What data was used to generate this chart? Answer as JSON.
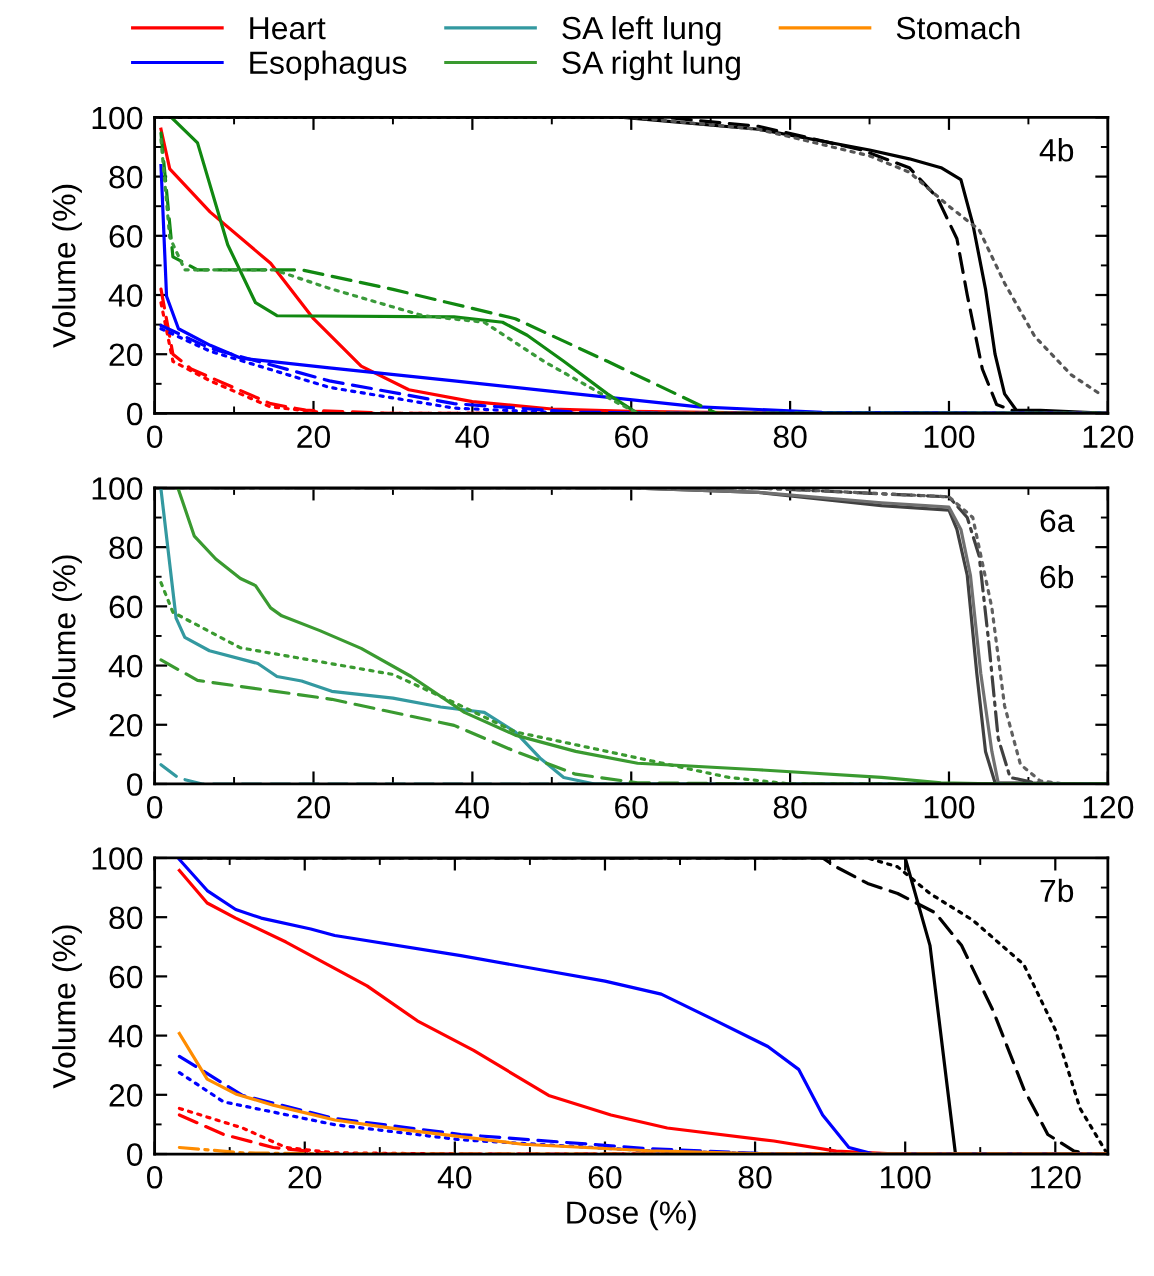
{
  "chart_data": [
    {
      "type": "line",
      "ylabel": "Volume (%)",
      "annotations": [
        "4b"
      ],
      "legend": "top",
      "xlim": [
        0,
        120
      ],
      "xticks": [
        0,
        20,
        40,
        60,
        80,
        100,
        120
      ],
      "ylim": [
        0,
        100
      ],
      "yticks": [
        0,
        20,
        40,
        60,
        80,
        100
      ],
      "series": [
        {
          "color": "#000000",
          "line_style": "solid",
          "x": [
            0,
            59,
            76,
            90,
            95,
            99,
            101.5,
            103,
            104.6,
            105.8,
            107,
            108.5,
            111.5,
            120
          ],
          "values": [
            100,
            100,
            96,
            89,
            86,
            83,
            79,
            64,
            42,
            20,
            6.6,
            1,
            1,
            0
          ]
        },
        {
          "color": "#000000",
          "line_style": "dashed",
          "x": [
            0,
            64.6,
            68,
            76,
            89,
            95,
            98.5,
            101,
            102.3,
            104.2,
            106,
            108.5,
            113,
            120
          ],
          "values": [
            100,
            100,
            99,
            97,
            89,
            83,
            73,
            59,
            40,
            15,
            3,
            0.5,
            0,
            0
          ]
        },
        {
          "color": "#555555",
          "line_style": "dotted",
          "x": [
            0,
            60,
            76,
            90,
            95,
            100,
            103.8,
            107,
            110.8,
            115.4,
            119
          ],
          "values": [
            100,
            100,
            96,
            87,
            81.5,
            70,
            62,
            44,
            26,
            13,
            6.6
          ]
        },
        {
          "name": "Heart",
          "color": "#ff0000",
          "line_style": "solid",
          "x": [
            0.8,
            1.9,
            7,
            14.6,
            20,
            26,
            32,
            40,
            50,
            60,
            80,
            120
          ],
          "values": [
            96,
            82.6,
            68,
            50.7,
            32,
            16,
            8,
            4,
            1.5,
            0.7,
            0,
            0
          ]
        },
        {
          "color": "#ff0000",
          "line_style": "dashed",
          "x": [
            0.8,
            2.3,
            4.6,
            14.6,
            19,
            30,
            120
          ],
          "values": [
            42,
            20,
            15,
            3.3,
            1.1,
            0,
            0
          ]
        },
        {
          "color": "#ff0000",
          "line_style": "dotted",
          "x": [
            0.8,
            2.3,
            7,
            14.6,
            22.3,
            120
          ],
          "values": [
            37.4,
            17.6,
            11,
            2.2,
            0,
            0
          ]
        },
        {
          "name": "Esophagus",
          "color": "#0000ff",
          "line_style": "solid",
          "x": [
            0.8,
            1.5,
            3,
            7,
            10.8,
            22,
            37.7,
            53,
            68.5,
            84,
            120
          ],
          "values": [
            83.7,
            39.6,
            28.6,
            23,
            18.7,
            15.4,
            11,
            6.6,
            2.2,
            0.4,
            0
          ]
        },
        {
          "color": "#0000ff",
          "line_style": "dashed",
          "x": [
            0.8,
            7,
            22,
            37.7,
            53,
            68.5,
            120
          ],
          "values": [
            29.7,
            22,
            11,
            3.3,
            0.4,
            0,
            0
          ]
        },
        {
          "color": "#0000ff",
          "line_style": "dotted",
          "x": [
            0.8,
            7,
            22,
            37.7,
            53,
            120
          ],
          "values": [
            28.6,
            21,
            8.8,
            1.8,
            0,
            0
          ]
        },
        {
          "color": "#118811",
          "line_style": "solid",
          "x": [
            2.3,
            5.4,
            9.2,
            12.7,
            15.4,
            37.7,
            43.8,
            46.9,
            51.5,
            57,
            60.8,
            120
          ],
          "values": [
            99.5,
            91.4,
            57,
            37.4,
            33,
            32.6,
            30.8,
            26.4,
            17.6,
            6.6,
            0,
            0
          ]
        },
        {
          "color": "#118811",
          "line_style": "dashed",
          "x": [
            0.8,
            2.3,
            5.4,
            18.5,
            30,
            45.4,
            57,
            70.8,
            120
          ],
          "values": [
            94.7,
            52.9,
            48.5,
            48.5,
            41.9,
            32,
            17.6,
            0,
            0
          ]
        },
        {
          "color": "#3a9a3a",
          "line_style": "dotted",
          "x": [
            0.8,
            1.9,
            3.8,
            15,
            22.3,
            33.8,
            41.5,
            49,
            57.7,
            60.8,
            120
          ],
          "values": [
            92.5,
            59.5,
            48.5,
            48.5,
            42,
            33,
            30.8,
            17.6,
            4.4,
            0,
            0
          ]
        }
      ]
    },
    {
      "type": "line",
      "ylabel": "Volume (%)",
      "annotations": [
        "6a",
        "6b"
      ],
      "legend": "top",
      "xlim": [
        0,
        120
      ],
      "xticks": [
        0,
        20,
        40,
        60,
        80,
        100,
        120
      ],
      "ylim": [
        0,
        100
      ],
      "yticks": [
        0,
        20,
        40,
        60,
        80,
        100
      ],
      "series": [
        {
          "color": "#404040",
          "line_style": "solid",
          "x": [
            0,
            60,
            76,
            91.5,
            100,
            101,
            102.3,
            103.5,
            104.6,
            105.8,
            120
          ],
          "values": [
            100,
            100,
            98.5,
            94,
            92.5,
            86,
            70.5,
            37.4,
            11,
            0.4,
            0
          ]
        },
        {
          "color": "#707070",
          "line_style": "solid",
          "x": [
            0,
            60,
            76,
            91.5,
            100,
            101.5,
            102.7,
            104,
            105.4,
            106.2,
            120
          ],
          "values": [
            100,
            100,
            98.5,
            95,
            93.5,
            86,
            70.5,
            37.4,
            11,
            0.4,
            0
          ]
        },
        {
          "color": "#404040",
          "line_style": "dashdot",
          "x": [
            0,
            76,
            91.5,
            100,
            102.3,
            103.8,
            105,
            106.2,
            107.7,
            110.8,
            114.6,
            120
          ],
          "values": [
            100,
            100,
            98,
            97,
            90,
            77,
            48,
            15.4,
            2.2,
            0.4,
            0,
            0
          ]
        },
        {
          "color": "#606060",
          "line_style": "dotted",
          "x": [
            0,
            76,
            100,
            103,
            105.4,
            107,
            109,
            111.5,
            114.6,
            120
          ],
          "values": [
            100,
            100,
            97,
            90,
            59.5,
            26.4,
            6.6,
            1,
            0,
            0
          ]
        },
        {
          "name": "SA left lung",
          "color": "#3399a0",
          "line_style": "solid",
          "x": [
            0.8,
            2.7,
            3.8,
            6.9,
            13,
            15.4,
            18.5,
            22.3,
            30,
            36,
            41.5,
            45.4,
            48.5,
            51.5,
            55.4,
            120
          ],
          "values": [
            99.5,
            56,
            49.5,
            45,
            40.7,
            36.3,
            34.8,
            31.3,
            29,
            26,
            24.2,
            17.6,
            8.8,
            2.2,
            0,
            0
          ]
        },
        {
          "color": "#3399a0",
          "line_style": "dashed",
          "x": [
            0.8,
            3,
            6,
            120
          ],
          "values": [
            6.5,
            2,
            0,
            0
          ]
        },
        {
          "name": "SA right lung",
          "color": "#3a9a30",
          "line_style": "solid",
          "x": [
            3,
            5,
            7.7,
            10.8,
            12.7,
            14.6,
            16,
            20.8,
            26,
            32.3,
            39,
            45.4,
            53,
            60.8,
            76,
            91.5,
            99,
            106.9,
            120
          ],
          "values": [
            99.5,
            83.7,
            76,
            69.4,
            67,
            59.5,
            56.8,
            51.8,
            45.8,
            36.3,
            24.2,
            16.5,
            11,
            7,
            4.8,
            2.2,
            0.4,
            0,
            0
          ]
        },
        {
          "color": "#3a9a30",
          "line_style": "dashed",
          "x": [
            0.8,
            5.4,
            22.3,
            37.7,
            45.4,
            53,
            60.8,
            76,
            120
          ],
          "values": [
            41.9,
            35,
            28.6,
            19.8,
            11,
            3.3,
            0.4,
            0,
            0
          ]
        },
        {
          "color": "#3a9a30",
          "line_style": "dotted",
          "x": [
            0.8,
            2.3,
            10.8,
            30,
            37.7,
            45.4,
            60.8,
            72.3,
            80,
            120
          ],
          "values": [
            68,
            58,
            46,
            37,
            27.5,
            17.6,
            8.8,
            2.2,
            0,
            0
          ]
        }
      ]
    },
    {
      "type": "line",
      "ylabel": "Volume (%)",
      "xlabel": "Dose (%)",
      "annotations": [
        "7b"
      ],
      "legend": "top",
      "xlim": [
        0,
        127
      ],
      "xticks": [
        0,
        20,
        40,
        60,
        80,
        100,
        120
      ],
      "ylim": [
        0,
        100
      ],
      "yticks": [
        0,
        20,
        40,
        60,
        80,
        100
      ],
      "series": [
        {
          "color": "#000000",
          "line_style": "solid",
          "x": [
            3.3,
            100,
            103.3,
            106.7,
            127
          ],
          "values": [
            100,
            100,
            70.5,
            0,
            0
          ]
        },
        {
          "color": "#000000",
          "line_style": "dashed",
          "x": [
            3.3,
            89,
            90.8,
            95,
            99,
            104,
            107.5,
            111.7,
            115.8,
            119,
            122.5,
            124.5,
            127
          ],
          "values": [
            100,
            100,
            97,
            91.4,
            88,
            81.5,
            70.5,
            48.5,
            22,
            6.6,
            1,
            0,
            0
          ]
        },
        {
          "color": "#000000",
          "line_style": "dotted",
          "x": [
            3.3,
            95,
            99,
            103.3,
            109,
            115.8,
            120,
            123.3,
            126.7
          ],
          "values": [
            100,
            100,
            97,
            88,
            79,
            64,
            42,
            15.4,
            1
          ]
        },
        {
          "color": "#ff0000",
          "line_style": "solid",
          "x": [
            3.3,
            7,
            10.8,
            17.5,
            28.3,
            35,
            42.5,
            52.5,
            60.8,
            68.3,
            82.5,
            90.8,
            99,
            127
          ],
          "values": [
            95.8,
            84.8,
            79.7,
            71.6,
            56.8,
            45,
            35,
            19.8,
            13.2,
            8.8,
            4.4,
            1,
            0,
            0
          ]
        },
        {
          "color": "#ff0000",
          "line_style": "dashed",
          "x": [
            3.3,
            9.2,
            15.8,
            24,
            127
          ],
          "values": [
            13.2,
            6.6,
            2.2,
            0,
            0
          ]
        },
        {
          "color": "#ff0000",
          "line_style": "dotted",
          "x": [
            3.3,
            11.7,
            17.5,
            24,
            40.8,
            127
          ],
          "values": [
            15.4,
            8.8,
            2.2,
            0.4,
            0,
            0
          ]
        },
        {
          "color": "#0000ff",
          "line_style": "solid",
          "x": [
            3.3,
            7,
            10.8,
            14.2,
            20.8,
            24,
            40.8,
            60,
            67.5,
            74,
            81.7,
            85.8,
            89,
            92.5,
            95.8,
            127
          ],
          "values": [
            99.5,
            89,
            82.6,
            79.7,
            76,
            73.8,
            67,
            58.4,
            54,
            46,
            36.3,
            28.6,
            13.2,
            2.2,
            0,
            0
          ]
        },
        {
          "color": "#0000ff",
          "line_style": "dashed",
          "x": [
            3.3,
            11.7,
            24,
            40.8,
            65.8,
            82.5,
            127
          ],
          "values": [
            33,
            19.8,
            12,
            6.6,
            1.8,
            0,
            0
          ]
        },
        {
          "color": "#0000ff",
          "line_style": "dotted",
          "x": [
            3.3,
            9.2,
            24,
            40.8,
            65.8,
            82.5,
            127
          ],
          "values": [
            27.5,
            17.6,
            9.9,
            4.8,
            1.1,
            0,
            0
          ]
        },
        {
          "name": "Stomach",
          "color": "#ff8c00",
          "line_style": "solid",
          "x": [
            3.3,
            7,
            10.8,
            15.8,
            24,
            32.5,
            49,
            65.8,
            82.5,
            127
          ],
          "values": [
            40.7,
            25.3,
            20.3,
            16.5,
            11.5,
            8.4,
            3.3,
            1.1,
            0,
            0
          ]
        },
        {
          "color": "#ff8c00",
          "line_style": "dashdot",
          "x": [
            3.3,
            11.7,
            24,
            127
          ],
          "values": [
            2.2,
            0.4,
            0,
            0
          ]
        }
      ]
    }
  ]
}
